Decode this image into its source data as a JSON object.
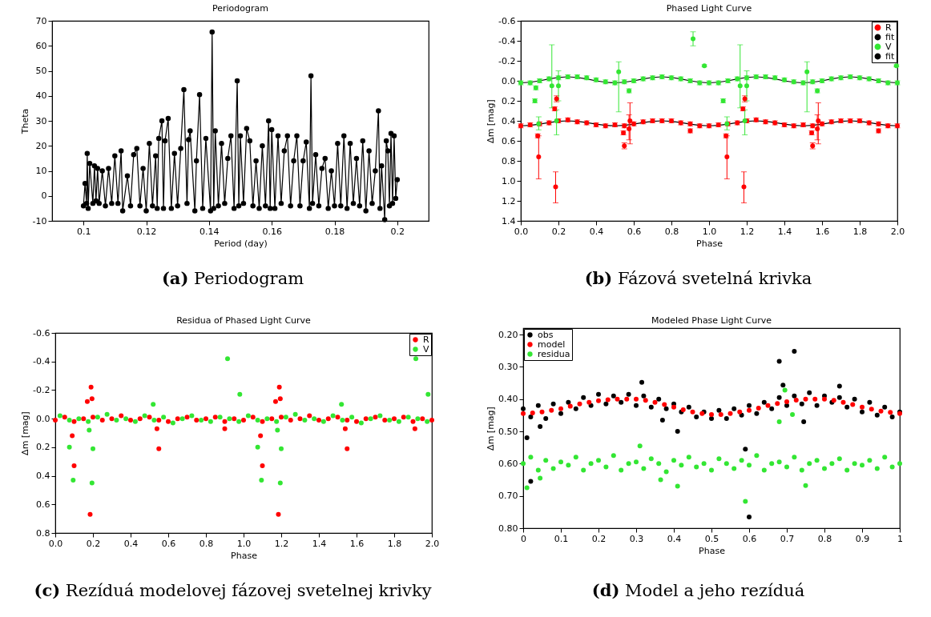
{
  "chart_data": [
    {
      "type": "line",
      "title": "Periodogram",
      "xlabel": "Period (day)",
      "ylabel": "Theta",
      "marker": "circle",
      "legend": false,
      "grid": false,
      "xlim": [
        0.09,
        0.21
      ],
      "xticks": [
        0.1,
        0.12,
        0.14,
        0.16,
        0.18,
        0.2
      ],
      "ylim": [
        -10,
        70
      ],
      "yticks": [
        -10,
        0,
        10,
        20,
        30,
        40,
        50,
        60,
        70
      ],
      "annotations": [
        "(a) Periodogram"
      ],
      "series": [
        {
          "color": "#000000",
          "x": [
            0.1,
            0.1005,
            0.101,
            0.1012,
            0.1015,
            0.102,
            0.103,
            0.1035,
            0.104,
            0.1045,
            0.105,
            0.106,
            0.107,
            0.108,
            0.109,
            0.11,
            0.111,
            0.112,
            0.1125,
            0.114,
            0.115,
            0.116,
            0.117,
            0.118,
            0.119,
            0.12,
            0.121,
            0.122,
            0.123,
            0.1235,
            0.124,
            0.125,
            0.1255,
            0.126,
            0.127,
            0.128,
            0.129,
            0.13,
            0.131,
            0.132,
            0.133,
            0.1335,
            0.134,
            0.1355,
            0.136,
            0.137,
            0.138,
            0.139,
            0.1405,
            0.141,
            0.1415,
            0.142,
            0.143,
            0.144,
            0.145,
            0.146,
            0.147,
            0.148,
            0.149,
            0.1495,
            0.15,
            0.151,
            0.152,
            0.153,
            0.154,
            0.155,
            0.156,
            0.157,
            0.158,
            0.159,
            0.1595,
            0.16,
            0.161,
            0.162,
            0.163,
            0.164,
            0.165,
            0.166,
            0.167,
            0.168,
            0.169,
            0.17,
            0.171,
            0.172,
            0.1725,
            0.173,
            0.174,
            0.175,
            0.176,
            0.177,
            0.178,
            0.179,
            0.18,
            0.181,
            0.182,
            0.183,
            0.184,
            0.185,
            0.186,
            0.187,
            0.188,
            0.189,
            0.19,
            0.191,
            0.192,
            0.193,
            0.194,
            0.1945,
            0.195,
            0.196,
            0.1965,
            0.197,
            0.1975,
            0.198,
            0.1985,
            0.199,
            0.1995,
            0.2
          ],
          "values": [
            -4,
            5,
            -3,
            17,
            -5,
            13,
            -3,
            12,
            -2,
            11,
            -3,
            10,
            -4,
            11,
            -3,
            16,
            -3,
            18,
            -6,
            8,
            -4,
            16.5,
            19,
            -4,
            11,
            -6,
            21,
            -4,
            16,
            -5,
            23,
            30,
            -5,
            22,
            31,
            -5,
            17,
            -4,
            19,
            42.5,
            -3,
            22.5,
            26,
            -6,
            14,
            40.5,
            -5,
            23,
            -6,
            65.5,
            -5,
            26,
            -4,
            21,
            -3,
            15,
            24,
            -5,
            46,
            -4,
            24,
            -3,
            27,
            22,
            -4,
            14,
            -5,
            20,
            -4,
            30,
            -5,
            26.5,
            -5,
            24,
            -3,
            18,
            24,
            -4,
            14,
            24,
            -4,
            14,
            21.5,
            -5,
            48,
            -3,
            16.5,
            -4,
            11,
            15,
            -5,
            10,
            -4,
            21,
            -4,
            24,
            -5,
            21,
            -3,
            15,
            -4,
            22,
            -6,
            18,
            -3,
            10,
            34,
            -5,
            12,
            -9.5,
            22,
            18,
            -4,
            25,
            -3,
            24,
            -1,
            6.5
          ]
        }
      ]
    },
    {
      "type": "scatter",
      "title": "Phased Light Curve",
      "xlabel": "Phase",
      "ylabel": "Δm [mag]",
      "marker": "circle",
      "legend": "top right",
      "grid": false,
      "xlim": [
        0,
        2
      ],
      "xticks": [
        {
          "value": 0,
          "label": "0.0"
        },
        0.2,
        0.4,
        0.6,
        0.8,
        {
          "value": 1,
          "label": "1.0"
        },
        1.2,
        1.4,
        1.6,
        1.8,
        {
          "value": 2,
          "label": "2.0"
        }
      ],
      "ylim": [
        1.4,
        -0.6
      ],
      "yticks": [
        -0.6,
        -0.4,
        -0.2,
        {
          "value": 0,
          "label": "0.0"
        },
        0.2,
        0.4,
        0.6,
        0.8,
        {
          "value": 1,
          "label": "1.0"
        },
        1.2,
        1.4
      ],
      "annotations": [
        "(b) Fázová svetelná krivka"
      ],
      "series": [
        {
          "name": "R",
          "color": "#ff0000",
          "x": [
            0,
            0.05,
            0.1,
            0.15,
            0.2,
            0.25,
            0.3,
            0.35,
            0.4,
            0.45,
            0.5,
            0.55,
            0.6,
            0.65,
            0.7,
            0.75,
            0.8,
            0.85,
            0.9,
            0.95,
            1,
            1.05,
            1.1,
            1.15,
            1.2,
            1.25,
            1.3,
            1.35,
            1.4,
            1.45,
            1.5,
            1.55,
            1.6,
            1.65,
            1.7,
            1.75,
            1.8,
            1.85,
            1.9,
            1.95,
            2,
            0.09,
            0.095,
            0.18,
            0.185,
            0.19,
            0.545,
            0.55,
            0.575,
            0.58,
            0.9,
            1.09,
            1.095,
            1.18,
            1.185,
            1.19,
            1.545,
            1.55,
            1.575,
            1.58,
            1.9
          ],
          "values": [
            0.45,
            0.44,
            0.43,
            0.42,
            0.4,
            0.39,
            0.41,
            0.42,
            0.44,
            0.45,
            0.44,
            0.45,
            0.43,
            0.41,
            0.4,
            0.4,
            0.4,
            0.42,
            0.43,
            0.45,
            0.45,
            0.44,
            0.43,
            0.42,
            0.4,
            0.39,
            0.41,
            0.42,
            0.44,
            0.45,
            0.44,
            0.45,
            0.43,
            0.41,
            0.4,
            0.4,
            0.4,
            0.42,
            0.43,
            0.45,
            0.45,
            0.55,
            0.76,
            0.28,
            1.06,
            0.18,
            0.52,
            0.65,
            0.48,
            0.4,
            0.5,
            0.55,
            0.76,
            0.28,
            1.06,
            0.18,
            0.52,
            0.65,
            0.48,
            0.4,
            0.5
          ],
          "errors": [
            0.02,
            0.02,
            0.02,
            0.02,
            0.02,
            0.02,
            0.02,
            0.02,
            0.02,
            0.02,
            0.02,
            0.02,
            0.02,
            0.02,
            0.02,
            0.02,
            0.02,
            0.02,
            0.02,
            0.02,
            0.02,
            0.02,
            0.02,
            0.02,
            0.02,
            0.02,
            0.02,
            0.02,
            0.02,
            0.02,
            0.02,
            0.02,
            0.02,
            0.02,
            0.02,
            0.02,
            0.02,
            0.02,
            0.02,
            0.02,
            0.02,
            0.02,
            [
              0.55,
              0.98
            ],
            0.02,
            [
              0.91,
              1.22
            ],
            0.03,
            0.02,
            0.03,
            [
              0.34,
              0.59
            ],
            [
              0.22,
              0.63
            ],
            0.02,
            0.02,
            [
              0.55,
              0.98
            ],
            0.02,
            [
              0.91,
              1.22
            ],
            0.03,
            0.02,
            0.03,
            [
              0.34,
              0.59
            ],
            [
              0.22,
              0.63
            ],
            0.02
          ]
        },
        {
          "name": "fit",
          "color": "#000000",
          "type": "line",
          "marker": "none",
          "x": [
            0,
            0.05,
            0.1,
            0.15,
            0.2,
            0.25,
            0.3,
            0.35,
            0.4,
            0.45,
            0.5,
            0.55,
            0.6,
            0.65,
            0.7,
            0.75,
            0.8,
            0.85,
            0.9,
            0.95,
            1,
            1.05,
            1.1,
            1.15,
            1.2,
            1.25,
            1.3,
            1.35,
            1.4,
            1.45,
            1.5,
            1.55,
            1.6,
            1.65,
            1.7,
            1.75,
            1.8,
            1.85,
            1.9,
            1.95,
            2
          ],
          "values": [
            0.45,
            0.445,
            0.433,
            0.417,
            0.405,
            0.4,
            0.405,
            0.417,
            0.433,
            0.445,
            0.45,
            0.445,
            0.433,
            0.417,
            0.405,
            0.4,
            0.405,
            0.417,
            0.433,
            0.445,
            0.45,
            0.445,
            0.433,
            0.417,
            0.405,
            0.4,
            0.405,
            0.417,
            0.433,
            0.445,
            0.45,
            0.445,
            0.433,
            0.417,
            0.405,
            0.4,
            0.405,
            0.417,
            0.433,
            0.445,
            0.45
          ]
        },
        {
          "name": "V",
          "color": "#33e633",
          "x": [
            0,
            0.05,
            0.1,
            0.15,
            0.2,
            0.25,
            0.3,
            0.35,
            0.4,
            0.45,
            0.5,
            0.55,
            0.6,
            0.65,
            0.7,
            0.75,
            0.8,
            0.85,
            0.9,
            0.95,
            1,
            1.05,
            1.1,
            1.15,
            1.2,
            1.25,
            1.3,
            1.35,
            1.4,
            1.45,
            1.5,
            1.55,
            1.6,
            1.65,
            1.7,
            1.75,
            1.8,
            1.85,
            1.9,
            1.95,
            2,
            0.075,
            0.08,
            0.095,
            0.165,
            0.19,
            0.2,
            0.52,
            0.575,
            0.915,
            0.975,
            1.075,
            1.095,
            1.165,
            1.19,
            1.2,
            1.52,
            1.575,
            1.995
          ],
          "values": [
            0.02,
            0.02,
            0,
            -0.02,
            -0.03,
            -0.04,
            -0.04,
            -0.03,
            -0.01,
            0.01,
            0.02,
            0.01,
            0,
            -0.02,
            -0.03,
            -0.04,
            -0.03,
            -0.02,
            0,
            0.02,
            0.02,
            0.02,
            0,
            -0.02,
            -0.03,
            -0.04,
            -0.04,
            -0.03,
            -0.01,
            0.01,
            0.02,
            0.01,
            0,
            -0.02,
            -0.03,
            -0.04,
            -0.03,
            -0.02,
            0,
            0.02,
            0.02,
            0.2,
            0.07,
            0.43,
            0.05,
            0.4,
            0.05,
            -0.09,
            0.1,
            -0.42,
            -0.15,
            0.2,
            0.43,
            0.05,
            0.4,
            0.05,
            -0.09,
            0.1,
            -0.15
          ],
          "errors": [
            0.02,
            0.02,
            0.02,
            0.02,
            0.02,
            0.02,
            0.02,
            0.02,
            0.02,
            0.02,
            0.02,
            0.02,
            0.02,
            0.02,
            0.02,
            0.02,
            0.02,
            0.02,
            0.02,
            0.02,
            0.02,
            0.02,
            0.02,
            0.02,
            0.02,
            0.02,
            0.02,
            0.02,
            0.02,
            0.02,
            0.02,
            0.02,
            0.02,
            0.02,
            0.02,
            0.02,
            0.02,
            0.02,
            0.02,
            0.02,
            0.02,
            0.02,
            0.02,
            [
              0.36,
              0.49
            ],
            [
              -0.36,
              0.27
            ],
            [
              0.29,
              0.54
            ],
            [
              -0.1,
              0.2
            ],
            [
              -0.19,
              0.31
            ],
            0.02,
            [
              -0.49,
              -0.35
            ],
            0.01,
            0.02,
            [
              0.36,
              0.49
            ],
            [
              -0.36,
              0.27
            ],
            [
              0.29,
              0.54
            ],
            [
              -0.1,
              0.2
            ],
            [
              -0.19,
              0.31
            ],
            0.02,
            0.01
          ]
        },
        {
          "name": "fit",
          "color": "#000000",
          "type": "line",
          "marker": "none",
          "x": [
            0,
            0.05,
            0.1,
            0.15,
            0.2,
            0.25,
            0.3,
            0.35,
            0.4,
            0.45,
            0.5,
            0.55,
            0.6,
            0.65,
            0.7,
            0.75,
            0.8,
            0.85,
            0.9,
            0.95,
            1,
            1.05,
            1.1,
            1.15,
            1.2,
            1.25,
            1.3,
            1.35,
            1.4,
            1.45,
            1.5,
            1.55,
            1.6,
            1.65,
            1.7,
            1.75,
            1.8,
            1.85,
            1.9,
            1.95,
            2
          ],
          "values": [
            0.02,
            0.014,
            0,
            -0.019,
            -0.034,
            -0.04,
            -0.034,
            -0.019,
            0,
            0.014,
            0.02,
            0.014,
            0,
            -0.019,
            -0.034,
            -0.04,
            -0.034,
            -0.019,
            0,
            0.014,
            0.02,
            0.014,
            0,
            -0.019,
            -0.034,
            -0.04,
            -0.034,
            -0.019,
            0,
            0.014,
            0.02,
            0.014,
            0,
            -0.019,
            -0.034,
            -0.04,
            -0.034,
            -0.019,
            0,
            0.014,
            0.02
          ]
        }
      ]
    },
    {
      "type": "scatter",
      "title": "Residua of Phased Light Curve",
      "xlabel": "Phase",
      "ylabel": "Δm [mag]",
      "marker": "circle",
      "legend": "top right",
      "grid": false,
      "xlim": [
        0,
        2
      ],
      "xticks": [
        {
          "value": 0,
          "label": "0.0"
        },
        0.2,
        0.4,
        0.6,
        0.8,
        {
          "value": 1,
          "label": "1.0"
        },
        1.2,
        1.4,
        1.6,
        1.8,
        {
          "value": 2,
          "label": "2.0"
        }
      ],
      "ylim": [
        0.8,
        -0.6
      ],
      "yticks": [
        -0.6,
        -0.4,
        -0.2,
        {
          "value": 0,
          "label": "0.0"
        },
        0.2,
        0.4,
        0.6,
        0.8
      ],
      "annotations": [
        "(c) Rezíduá modelovej fázovej svetelnej krivky"
      ],
      "series": [
        {
          "name": "R",
          "color": "#ff0000",
          "x": [
            0,
            0.05,
            0.1,
            0.15,
            0.2,
            0.25,
            0.3,
            0.35,
            0.4,
            0.45,
            0.5,
            0.55,
            0.6,
            0.65,
            0.7,
            0.75,
            0.8,
            0.85,
            0.9,
            0.95,
            1,
            1.05,
            1.1,
            1.15,
            1.2,
            1.25,
            1.3,
            1.35,
            1.4,
            1.45,
            1.5,
            1.55,
            1.6,
            1.65,
            1.7,
            1.75,
            1.8,
            1.85,
            1.9,
            1.95,
            2,
            0.09,
            0.1,
            0.17,
            0.185,
            0.19,
            0.195,
            0.55,
            0.54,
            1.09,
            1.1,
            1.17,
            1.185,
            1.19,
            1.195,
            1.55,
            1.54,
            1.91,
            0.9
          ],
          "values": [
            0.01,
            -0.01,
            0.02,
            0,
            -0.01,
            0.01,
            0,
            -0.02,
            0.01,
            0,
            -0.01,
            0.01,
            0.02,
            0,
            -0.01,
            0.01,
            0,
            -0.01,
            0.02,
            0,
            0.01,
            -0.01,
            0.02,
            0,
            -0.01,
            0.01,
            0,
            -0.02,
            0.01,
            0,
            -0.01,
            0.01,
            0.02,
            0,
            -0.01,
            0.01,
            0,
            -0.01,
            0.02,
            0,
            0.01,
            0.12,
            0.33,
            -0.12,
            0.67,
            -0.22,
            -0.14,
            0.21,
            0.07,
            0.12,
            0.33,
            -0.12,
            0.67,
            -0.22,
            -0.14,
            0.21,
            0.07,
            0.07,
            0.07
          ]
        },
        {
          "name": "V",
          "color": "#33e633",
          "x": [
            0.025,
            0.075,
            0.125,
            0.175,
            0.225,
            0.275,
            0.325,
            0.375,
            0.425,
            0.475,
            0.525,
            0.575,
            0.625,
            0.675,
            0.725,
            0.775,
            0.825,
            0.875,
            0.925,
            0.975,
            1.025,
            1.075,
            1.125,
            1.175,
            1.225,
            1.275,
            1.325,
            1.375,
            1.425,
            1.475,
            1.525,
            1.575,
            1.625,
            1.675,
            1.725,
            1.775,
            1.825,
            1.875,
            1.925,
            1.975,
            0.075,
            0.095,
            0.18,
            0.195,
            0.2,
            0.52,
            0.915,
            0.98,
            1.075,
            1.095,
            1.18,
            1.195,
            1.2,
            1.52,
            1.915,
            1.98
          ],
          "values": [
            -0.02,
            0.01,
            0,
            0.02,
            -0.01,
            -0.03,
            0.01,
            0,
            0.02,
            -0.02,
            0.01,
            -0.01,
            0.03,
            0,
            -0.02,
            0.01,
            0.02,
            -0.01,
            0,
            0.02,
            -0.02,
            0.01,
            0,
            0.02,
            -0.01,
            -0.03,
            0.01,
            0,
            0.02,
            -0.02,
            0.01,
            -0.01,
            0.03,
            0,
            -0.02,
            0.01,
            0.02,
            -0.01,
            0,
            0.02,
            0.2,
            0.43,
            0.08,
            0.45,
            0.21,
            -0.1,
            -0.42,
            -0.17,
            0.2,
            0.43,
            0.08,
            0.45,
            0.21,
            -0.1,
            -0.42,
            -0.17
          ]
        }
      ]
    },
    {
      "type": "scatter",
      "title": "Modeled Phase Light Curve",
      "xlabel": "Phase",
      "ylabel": "Δm [mag]",
      "marker": "circle",
      "legend": "top left",
      "grid": false,
      "xlim": [
        0,
        1
      ],
      "xticks": [
        0,
        0.1,
        0.2,
        0.3,
        0.4,
        0.5,
        0.6,
        0.7,
        0.8,
        0.9,
        1
      ],
      "ylim": [
        0.8,
        0.18
      ],
      "yticks": [
        {
          "value": 0.2,
          "label": "0.20"
        },
        {
          "value": 0.3,
          "label": "0.30"
        },
        {
          "value": 0.4,
          "label": "0.40"
        },
        {
          "value": 0.5,
          "label": "0.50"
        },
        {
          "value": 0.6,
          "label": "0.60"
        },
        {
          "value": 0.7,
          "label": "0.70"
        },
        {
          "value": 0.8,
          "label": "0.80"
        }
      ],
      "annotations": [
        "(d) Model a jeho rezíduá"
      ],
      "series": [
        {
          "name": "obs",
          "color": "#000000",
          "x": [
            0,
            0.02,
            0.04,
            0.06,
            0.08,
            0.1,
            0.12,
            0.14,
            0.16,
            0.18,
            0.2,
            0.22,
            0.24,
            0.26,
            0.28,
            0.3,
            0.32,
            0.34,
            0.36,
            0.38,
            0.4,
            0.42,
            0.44,
            0.46,
            0.48,
            0.5,
            0.52,
            0.54,
            0.56,
            0.58,
            0.6,
            0.62,
            0.64,
            0.66,
            0.68,
            0.7,
            0.72,
            0.74,
            0.76,
            0.78,
            0.8,
            0.82,
            0.84,
            0.86,
            0.88,
            0.9,
            0.92,
            0.94,
            0.96,
            0.98,
            1,
            0.01,
            0.02,
            0.045,
            0.315,
            0.37,
            0.41,
            0.59,
            0.6,
            0.68,
            0.69,
            0.72,
            0.745,
            0.84
          ],
          "values": [
            0.43,
            0.455,
            0.42,
            0.46,
            0.415,
            0.445,
            0.41,
            0.43,
            0.395,
            0.42,
            0.385,
            0.415,
            0.39,
            0.41,
            0.385,
            0.42,
            0.39,
            0.425,
            0.4,
            0.43,
            0.415,
            0.44,
            0.425,
            0.455,
            0.44,
            0.46,
            0.435,
            0.46,
            0.43,
            0.45,
            0.42,
            0.445,
            0.41,
            0.43,
            0.395,
            0.42,
            0.39,
            0.415,
            0.38,
            0.42,
            0.39,
            0.41,
            0.395,
            0.425,
            0.4,
            0.44,
            0.41,
            0.45,
            0.425,
            0.455,
            0.44,
            0.52,
            0.655,
            0.485,
            0.348,
            0.465,
            0.5,
            0.555,
            0.765,
            0.283,
            0.357,
            0.252,
            0.47,
            0.36
          ]
        },
        {
          "name": "model",
          "color": "#ff0000",
          "x": [
            0,
            0.025,
            0.05,
            0.075,
            0.1,
            0.125,
            0.15,
            0.175,
            0.2,
            0.225,
            0.25,
            0.275,
            0.3,
            0.325,
            0.35,
            0.375,
            0.4,
            0.425,
            0.45,
            0.475,
            0.5,
            0.525,
            0.55,
            0.575,
            0.6,
            0.625,
            0.65,
            0.675,
            0.7,
            0.725,
            0.75,
            0.775,
            0.8,
            0.825,
            0.85,
            0.875,
            0.9,
            0.925,
            0.95,
            0.975,
            1
          ],
          "values": [
            0.445,
            0.443,
            0.44,
            0.435,
            0.43,
            0.422,
            0.415,
            0.41,
            0.405,
            0.402,
            0.4,
            0.4,
            0.4,
            0.404,
            0.41,
            0.417,
            0.425,
            0.433,
            0.44,
            0.445,
            0.448,
            0.448,
            0.445,
            0.44,
            0.435,
            0.428,
            0.42,
            0.414,
            0.408,
            0.403,
            0.4,
            0.4,
            0.4,
            0.404,
            0.41,
            0.417,
            0.425,
            0.431,
            0.437,
            0.441,
            0.445
          ]
        },
        {
          "name": "residua",
          "color": "#33e633",
          "x": [
            0,
            0.02,
            0.04,
            0.06,
            0.08,
            0.1,
            0.12,
            0.14,
            0.16,
            0.18,
            0.2,
            0.22,
            0.24,
            0.26,
            0.28,
            0.3,
            0.32,
            0.34,
            0.36,
            0.38,
            0.4,
            0.42,
            0.44,
            0.46,
            0.48,
            0.5,
            0.52,
            0.54,
            0.56,
            0.58,
            0.6,
            0.62,
            0.64,
            0.66,
            0.68,
            0.7,
            0.72,
            0.74,
            0.76,
            0.78,
            0.8,
            0.82,
            0.84,
            0.86,
            0.88,
            0.9,
            0.92,
            0.94,
            0.96,
            0.98,
            1,
            0.01,
            0.045,
            0.31,
            0.365,
            0.41,
            0.59,
            0.695,
            0.68,
            0.715,
            0.75
          ],
          "values": [
            0.6,
            0.58,
            0.62,
            0.59,
            0.615,
            0.595,
            0.605,
            0.58,
            0.62,
            0.6,
            0.59,
            0.61,
            0.575,
            0.62,
            0.6,
            0.595,
            0.615,
            0.585,
            0.6,
            0.625,
            0.59,
            0.605,
            0.58,
            0.61,
            0.6,
            0.62,
            0.585,
            0.6,
            0.615,
            0.59,
            0.605,
            0.575,
            0.62,
            0.6,
            0.595,
            0.61,
            0.58,
            0.62,
            0.6,
            0.59,
            0.615,
            0.6,
            0.585,
            0.62,
            0.6,
            0.605,
            0.59,
            0.615,
            0.58,
            0.61,
            0.6,
            0.675,
            0.645,
            0.545,
            0.65,
            0.67,
            0.717,
            0.372,
            0.47,
            0.448,
            0.668
          ]
        }
      ]
    }
  ]
}
